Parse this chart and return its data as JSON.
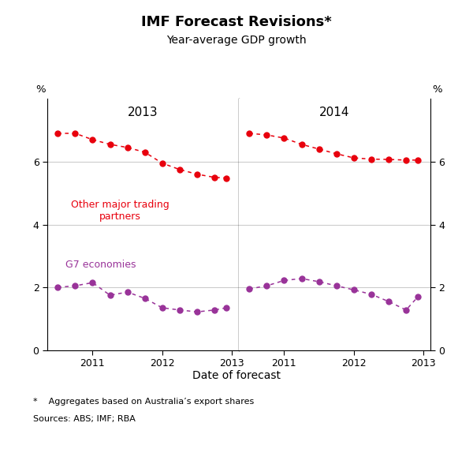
{
  "title": "IMF Forecast Revisions*",
  "subtitle": "Year-average GDP growth",
  "xlabel": "Date of forecast",
  "ylabel_left": "%",
  "ylabel_right": "%",
  "panel_labels": [
    "2013",
    "2014"
  ],
  "footnote1": "*    Aggregates based on Australia’s export shares",
  "footnote2": "Sources: ABS; IMF; RBA",
  "ylim": [
    0,
    8
  ],
  "yticks": [
    0,
    2,
    4,
    6
  ],
  "red_color": "#e8000d",
  "purple_color": "#993399",
  "panel1_red_x": [
    2010.5,
    2010.75,
    2011.0,
    2011.25,
    2011.5,
    2011.75,
    2012.0,
    2012.25,
    2012.5,
    2012.75,
    2012.92
  ],
  "panel1_red_y": [
    6.9,
    6.9,
    6.7,
    6.55,
    6.45,
    6.3,
    5.95,
    5.75,
    5.6,
    5.5,
    5.48
  ],
  "panel1_purple_x": [
    2010.5,
    2010.75,
    2011.0,
    2011.25,
    2011.5,
    2011.75,
    2012.0,
    2012.25,
    2012.5,
    2012.75,
    2012.92
  ],
  "panel1_purple_y": [
    2.0,
    2.05,
    2.15,
    1.75,
    1.85,
    1.65,
    1.35,
    1.28,
    1.22,
    1.28,
    1.35
  ],
  "panel2_red_x": [
    2010.5,
    2010.75,
    2011.0,
    2011.25,
    2011.5,
    2011.75,
    2012.0,
    2012.25,
    2012.5,
    2012.75,
    2012.92
  ],
  "panel2_red_y": [
    6.9,
    6.85,
    6.75,
    6.55,
    6.4,
    6.25,
    6.12,
    6.08,
    6.07,
    6.05,
    6.05
  ],
  "panel2_purple_x": [
    2010.5,
    2010.75,
    2011.0,
    2011.25,
    2011.5,
    2011.75,
    2012.0,
    2012.25,
    2012.5,
    2012.75,
    2012.92
  ],
  "panel2_purple_y": [
    1.95,
    2.05,
    2.22,
    2.28,
    2.18,
    2.05,
    1.92,
    1.78,
    1.55,
    1.28,
    1.7
  ]
}
